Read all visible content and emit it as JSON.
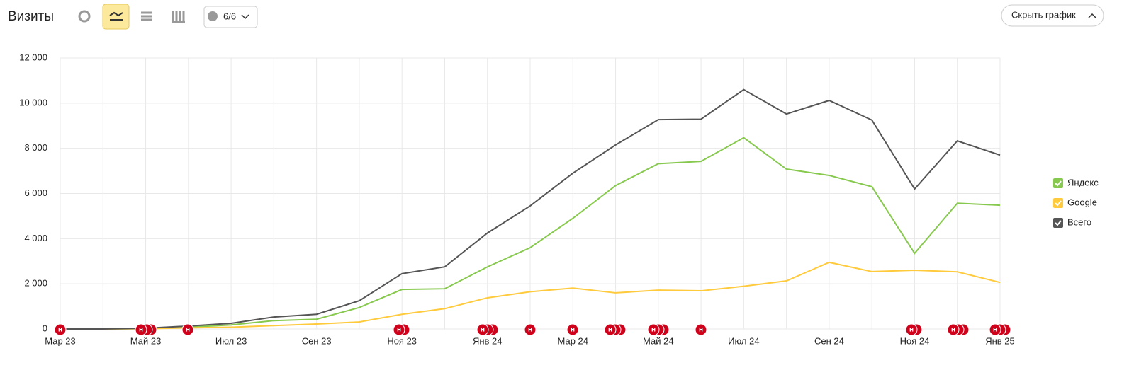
{
  "header": {
    "title": "Визиты",
    "comments_button": "6/6",
    "hide_button": "Скрыть график"
  },
  "note_marker": "н",
  "chart_data": {
    "type": "line",
    "categories": [
      "Мар 23",
      null,
      "Май 23",
      null,
      "Июл 23",
      null,
      "Сен 23",
      null,
      "Ноя 23",
      null,
      "Янв 24",
      null,
      "Мар 24",
      null,
      "Май 24",
      null,
      "Июл 24",
      null,
      "Сен 24",
      null,
      "Ноя 24",
      null,
      "Янв 25"
    ],
    "series": [
      {
        "name": "Яндекс",
        "color": "#87c94e",
        "values": [
          0,
          0,
          20,
          80,
          180,
          370,
          430,
          950,
          1750,
          1780,
          2750,
          3600,
          4900,
          6350,
          7320,
          7420,
          8470,
          7080,
          6800,
          6300,
          3350,
          5570,
          5480
        ]
      },
      {
        "name": "Google",
        "color": "#ffca3c",
        "values": [
          0,
          0,
          10,
          50,
          80,
          150,
          220,
          310,
          650,
          900,
          1380,
          1650,
          1810,
          1600,
          1720,
          1690,
          1890,
          2130,
          2950,
          2540,
          2600,
          2530,
          2060
        ]
      },
      {
        "name": "Всего",
        "color": "#555555",
        "values": [
          0,
          0,
          30,
          130,
          250,
          530,
          650,
          1250,
          2450,
          2750,
          4250,
          5450,
          6900,
          8150,
          9270,
          9290,
          10600,
          9520,
          10120,
          9250,
          6200,
          8330,
          7700
        ]
      }
    ],
    "ylim": [
      0,
      12000
    ],
    "yticks": [
      0,
      {
        "value": 2000,
        "label": "2 000"
      },
      {
        "value": 4000,
        "label": "4 000"
      },
      {
        "value": 6000,
        "label": "6 000"
      },
      {
        "value": 8000,
        "label": "8 000"
      },
      {
        "value": 10000,
        "label": "10 000"
      },
      {
        "value": 12000,
        "label": "12 000"
      }
    ],
    "grid": true,
    "legend": "right"
  }
}
